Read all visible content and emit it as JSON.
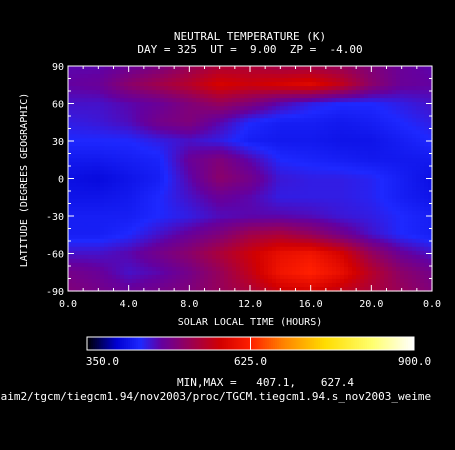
{
  "chart_data": {
    "type": "heatmap",
    "title": "NEUTRAL TEMPERATURE (K)",
    "subtitle": "DAY = 325  UT =  9.00  ZP =  -4.00",
    "xlabel": "SOLAR LOCAL TIME (HOURS)",
    "ylabel": "LATITUDE (DEGREES GEOGRAPHIC)",
    "xlim": [
      0,
      24
    ],
    "ylim": [
      -90,
      90
    ],
    "x_ticks": [
      "0.0",
      "4.0",
      "8.0",
      "12.0",
      "16.0",
      "20.0",
      "0.0"
    ],
    "y_ticks": [
      "-90",
      "-60",
      "-30",
      "0",
      "30",
      "60",
      "90"
    ],
    "x": [
      0,
      2,
      4,
      6,
      8,
      10,
      12,
      14,
      16,
      18,
      20,
      22,
      24
    ],
    "y": [
      90,
      75,
      60,
      45,
      30,
      15,
      0,
      -15,
      -30,
      -45,
      -60,
      -75,
      -90
    ],
    "z": [
      [
        470,
        470,
        480,
        495,
        520,
        540,
        540,
        530,
        530,
        520,
        500,
        480,
        470
      ],
      [
        475,
        480,
        510,
        530,
        550,
        580,
        570,
        580,
        590,
        560,
        510,
        480,
        475
      ],
      [
        460,
        460,
        470,
        480,
        500,
        520,
        500,
        470,
        450,
        440,
        440,
        450,
        460
      ],
      [
        450,
        455,
        465,
        490,
        500,
        470,
        440,
        430,
        430,
        425,
        430,
        440,
        450
      ],
      [
        440,
        440,
        440,
        450,
        460,
        450,
        430,
        425,
        425,
        420,
        420,
        430,
        440
      ],
      [
        425,
        425,
        430,
        435,
        480,
        500,
        470,
        440,
        435,
        430,
        425,
        425,
        425
      ],
      [
        415,
        410,
        420,
        430,
        470,
        510,
        490,
        455,
        450,
        450,
        445,
        430,
        415
      ],
      [
        420,
        420,
        425,
        440,
        460,
        480,
        470,
        450,
        450,
        450,
        445,
        430,
        420
      ],
      [
        430,
        430,
        430,
        440,
        450,
        465,
        470,
        470,
        465,
        455,
        450,
        440,
        430
      ],
      [
        430,
        430,
        440,
        460,
        480,
        500,
        530,
        540,
        520,
        490,
        460,
        440,
        430
      ],
      [
        460,
        460,
        470,
        490,
        510,
        540,
        570,
        600,
        610,
        580,
        520,
        480,
        460
      ],
      [
        490,
        480,
        460,
        470,
        490,
        520,
        560,
        610,
        627,
        600,
        550,
        510,
        490
      ],
      [
        500,
        490,
        480,
        490,
        500,
        520,
        540,
        570,
        580,
        560,
        540,
        520,
        500
      ]
    ],
    "colorbar": {
      "min": 350.0,
      "max": 900.0,
      "tick_labels": [
        "350.0",
        "625.0",
        "900.0"
      ]
    },
    "minmax_label": "MIN,MAX =",
    "min_value": "407.1,",
    "max_value": "627.4",
    "source_path": "/aim2/tgcm/tiegcm1.94/nov2003/proc/TGCM.tiegcm1.94.s_nov2003_weime"
  }
}
